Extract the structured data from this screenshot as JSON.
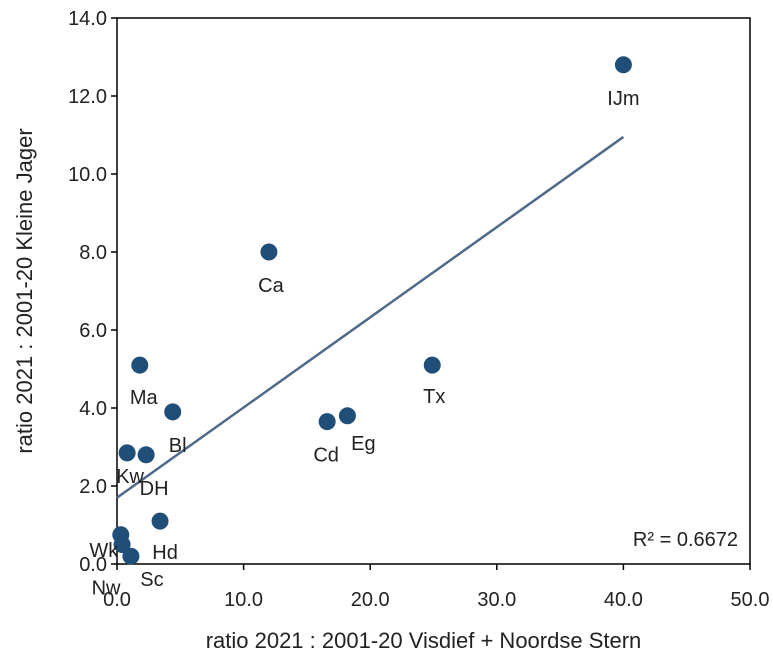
{
  "chart_data": {
    "type": "scatter",
    "xlabel": "ratio 2021 : 2001-20 Visdief + Noordse Stern",
    "ylabel": "ratio 2021 : 2001-20 Kleine Jager",
    "xlim": [
      0,
      50
    ],
    "ylim": [
      0,
      14
    ],
    "xticks": [
      "0.0",
      "10.0",
      "20.0",
      "30.0",
      "40.0",
      "50.0"
    ],
    "yticks": [
      "0.0",
      "2.0",
      "4.0",
      "6.0",
      "8.0",
      "10.0",
      "12.0",
      "14.0"
    ],
    "grid": false,
    "marker_color": "#1f4e79",
    "trendline_color": "#4f6a8a",
    "points": [
      {
        "label": "IJm",
        "x": 40.0,
        "y": 12.8
      },
      {
        "label": "Ca",
        "x": 12.0,
        "y": 8.0
      },
      {
        "label": "Tx",
        "x": 24.9,
        "y": 5.1
      },
      {
        "label": "Ma",
        "x": 1.8,
        "y": 5.1
      },
      {
        "label": "Bl",
        "x": 4.4,
        "y": 3.9
      },
      {
        "label": "Cd",
        "x": 16.6,
        "y": 3.65
      },
      {
        "label": "Eg",
        "x": 18.2,
        "y": 3.8
      },
      {
        "label": "Kw",
        "x": 0.8,
        "y": 2.85
      },
      {
        "label": "DH",
        "x": 2.3,
        "y": 2.8
      },
      {
        "label": "Hd",
        "x": 3.4,
        "y": 1.1
      },
      {
        "label": "Wk",
        "x": 0.3,
        "y": 0.75
      },
      {
        "label": "Nw",
        "x": 0.4,
        "y": 0.5
      },
      {
        "label": "Sc",
        "x": 1.1,
        "y": 0.2
      }
    ],
    "trendline": {
      "x": [
        0,
        40
      ],
      "y": [
        1.7,
        10.95
      ]
    },
    "r_squared_text": "R² = 0.6672"
  }
}
